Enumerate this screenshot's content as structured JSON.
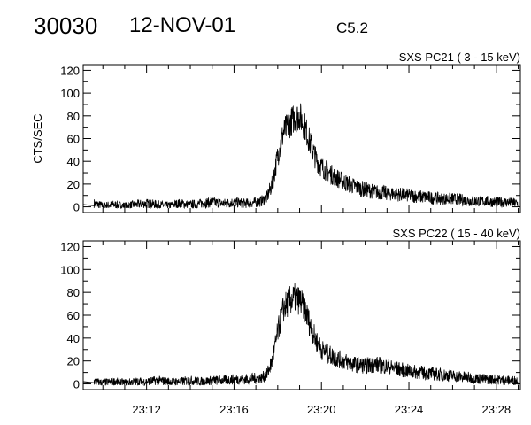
{
  "header": {
    "event_id": "30030",
    "date": "12-NOV-01",
    "goes_class": "C5.2"
  },
  "chart_data": [
    {
      "type": "line",
      "title": "SXS PC21  (  3 - 15 keV)",
      "xlabel": "",
      "ylabel": "CTS/SEC",
      "xlim_minutes_after_23h": [
        9.1,
        29.1
      ],
      "ylim": [
        -5,
        125
      ],
      "yticks": [
        0,
        20,
        40,
        60,
        80,
        100,
        120
      ],
      "xticks": [
        "23:12",
        "23:16",
        "23:20",
        "23:24",
        "23:28"
      ],
      "xtick_values": [
        12,
        16,
        20,
        24,
        28
      ],
      "x": [
        9.6,
        10,
        10.5,
        11,
        11.5,
        12,
        12.5,
        13,
        13.5,
        14,
        14.5,
        15,
        15.5,
        16,
        16.5,
        17,
        17.25,
        17.5,
        17.75,
        18,
        18.25,
        18.5,
        18.75,
        19,
        19.25,
        19.5,
        19.75,
        20,
        20.5,
        21,
        21.5,
        22,
        22.5,
        23,
        23.5,
        24,
        24.5,
        25,
        25.5,
        26,
        26.5,
        27,
        27.5,
        28,
        28.5,
        29
      ],
      "values": [
        3,
        1,
        2,
        1,
        2,
        3,
        2,
        1,
        3,
        2,
        3,
        4,
        3,
        4,
        3,
        4,
        5,
        8,
        20,
        45,
        65,
        72,
        78,
        80,
        70,
        55,
        42,
        35,
        28,
        22,
        18,
        15,
        13,
        12,
        11,
        10,
        9,
        8,
        7,
        7,
        6,
        5,
        5,
        4,
        4,
        3
      ]
    },
    {
      "type": "line",
      "title": "SXS PC22  ( 15 - 40 keV)",
      "xlabel": "",
      "ylabel": "",
      "xlim_minutes_after_23h": [
        9.1,
        29.1
      ],
      "ylim": [
        -5,
        125
      ],
      "yticks": [
        0,
        20,
        40,
        60,
        80,
        100,
        120
      ],
      "xticks": [
        "23:12",
        "23:16",
        "23:20",
        "23:24",
        "23:28"
      ],
      "xtick_values": [
        12,
        16,
        20,
        24,
        28
      ],
      "x": [
        9.6,
        10,
        10.5,
        11,
        11.5,
        12,
        12.5,
        13,
        13.5,
        14,
        14.5,
        15,
        15.5,
        16,
        16.5,
        17,
        17.25,
        17.5,
        17.75,
        18,
        18.25,
        18.5,
        18.75,
        19,
        19.25,
        19.5,
        19.75,
        20,
        20.5,
        21,
        21.5,
        22,
        22.5,
        23,
        23.5,
        24,
        24.5,
        25,
        25.5,
        26,
        26.5,
        27,
        27.5,
        28,
        28.5,
        29
      ],
      "values": [
        2,
        1,
        2,
        1,
        2,
        2,
        3,
        2,
        2,
        3,
        2,
        3,
        3,
        4,
        4,
        5,
        5,
        8,
        20,
        45,
        65,
        72,
        75,
        73,
        65,
        50,
        38,
        30,
        24,
        20,
        17,
        16,
        17,
        15,
        13,
        11,
        10,
        9,
        8,
        7,
        6,
        5,
        4,
        4,
        3,
        3
      ]
    }
  ]
}
